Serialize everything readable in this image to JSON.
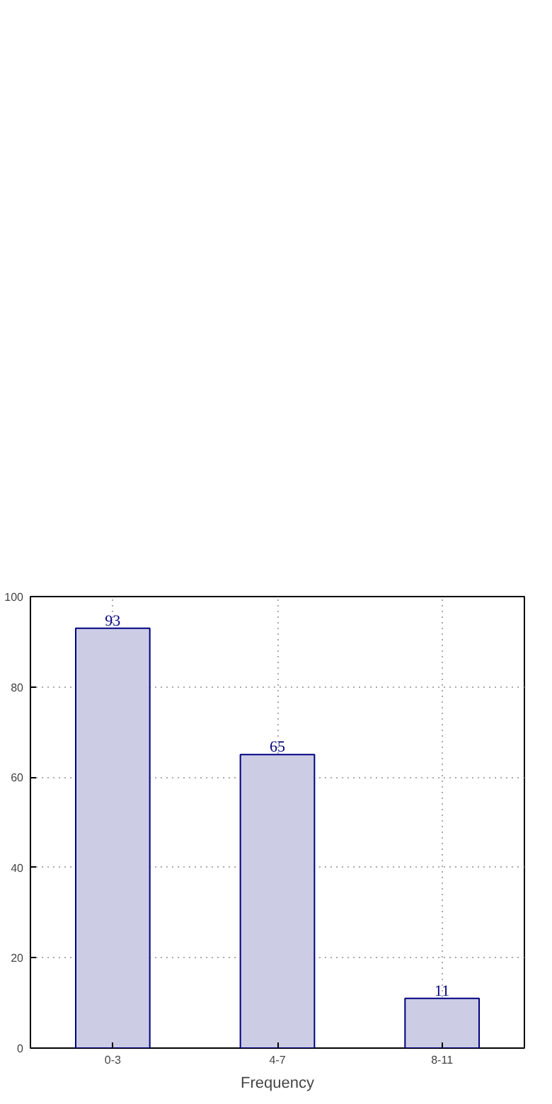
{
  "chart_data": {
    "type": "bar",
    "xlabel": "Frequency",
    "categories": [
      "0-3",
      "4-7",
      "8-11"
    ],
    "values": [
      93,
      65,
      11
    ],
    "color": "#cccce5",
    "data_labels": true,
    "ylim": [
      0,
      100
    ],
    "yticks": [
      0,
      20,
      40,
      60,
      80,
      100
    ],
    "grid": true
  }
}
